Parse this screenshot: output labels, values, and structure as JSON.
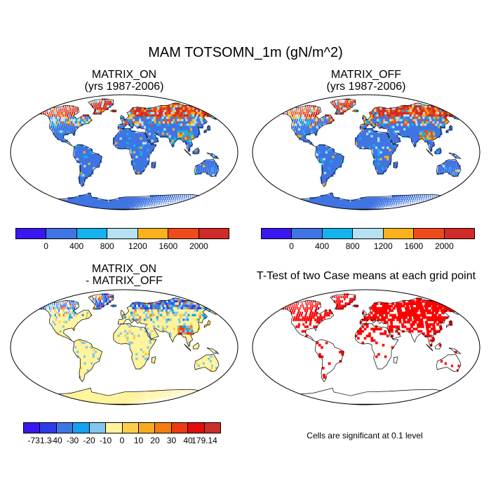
{
  "title": "MAM TOTSOMN_1m (gN/m^2)",
  "panels": {
    "top_left": {
      "line1": "MATRIX_ON",
      "line2": "(yrs 1987-2006)"
    },
    "top_right": {
      "line1": "MATRIX_OFF",
      "line2": "(yrs 1987-2006)"
    },
    "bottom_left": {
      "line1": "MATRIX_ON",
      "line2": "- MATRIX_OFF"
    },
    "bottom_right": {
      "line1": "T-Test of two Case means at each grid point"
    }
  },
  "colorbar_abs": {
    "colors": [
      "#3a17f0",
      "#3f74e3",
      "#13b3ed",
      "#b5e2f3",
      "#fbb21a",
      "#ef4b1a",
      "#d12a27"
    ],
    "labels": [
      "0",
      "400",
      "800",
      "1200",
      "1600",
      "2000"
    ]
  },
  "colorbar_diff": {
    "colors": [
      "#3a17f0",
      "#2c3cea",
      "#3e76e4",
      "#16a0f0",
      "#82c6ec",
      "#fff39c",
      "#fbcf4a",
      "#f9ab1e",
      "#f57d0f",
      "#ee3a12",
      "#e30b0b",
      "#cc2e28"
    ],
    "labels": [
      "-731.3",
      "-40",
      "-30",
      "-20",
      "-10",
      "0",
      "10",
      "20",
      "30",
      "40",
      "179.14"
    ]
  },
  "significance_color": "#ff0000",
  "note": "Cells are significant at 0.1 level"
}
